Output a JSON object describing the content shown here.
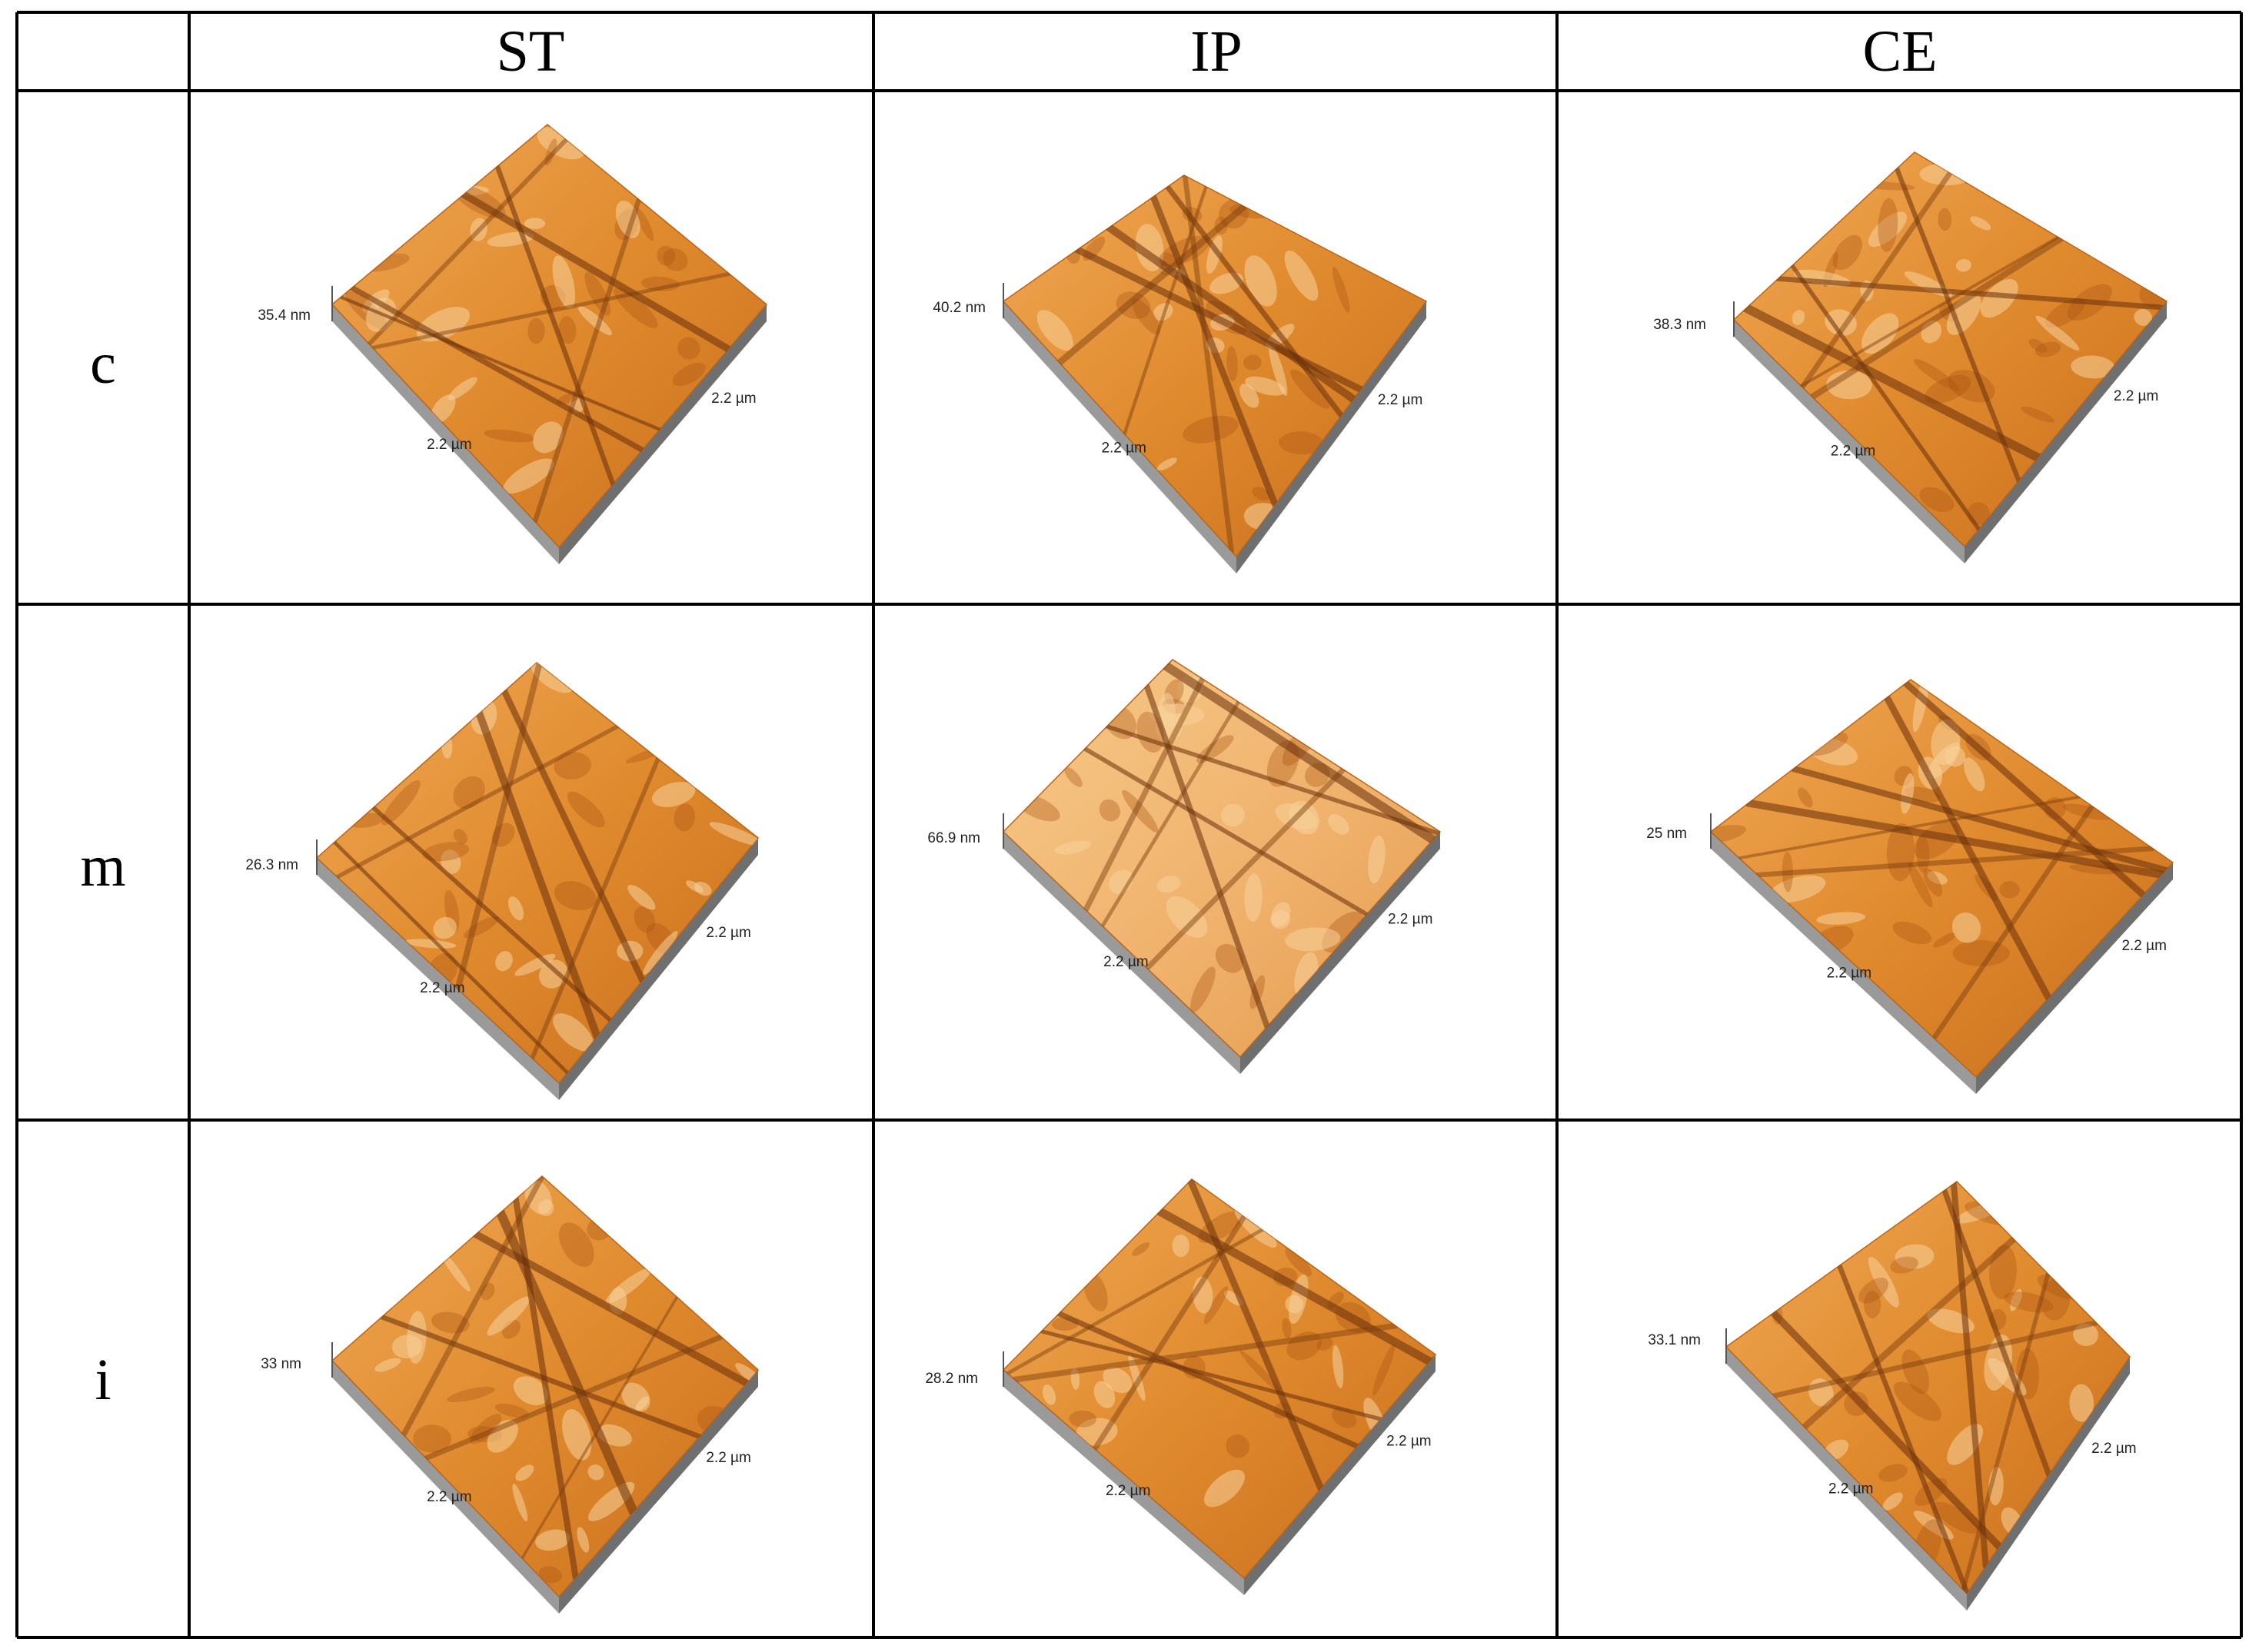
{
  "columns": [
    "ST",
    "IP",
    "CE"
  ],
  "rows": [
    {
      "label": "c",
      "cells": [
        {
          "height": "35.4 nm",
          "x_scale": "2.2 µm",
          "y_scale": "2.2 µm"
        },
        {
          "height": "40.2 nm",
          "x_scale": "2.2 µm",
          "y_scale": "2.2 µm"
        },
        {
          "height": "38.3 nm",
          "x_scale": "2.2 µm",
          "y_scale": "2.2 µm"
        }
      ]
    },
    {
      "label": "m",
      "cells": [
        {
          "height": "26.3 nm",
          "x_scale": "2.2 µm",
          "y_scale": "2.2 µm"
        },
        {
          "height": "66.9 nm",
          "x_scale": "2.2 µm",
          "y_scale": "2.2 µm"
        },
        {
          "height": "25 nm",
          "x_scale": "2.2 µm",
          "y_scale": "2.2 µm"
        }
      ]
    },
    {
      "label": "i",
      "cells": [
        {
          "height": "33 nm",
          "x_scale": "2.2 µm",
          "y_scale": "2.2 µm"
        },
        {
          "height": "28.2 nm",
          "x_scale": "2.2 µm",
          "y_scale": "2.2 µm"
        },
        {
          "height": "33.1 nm",
          "x_scale": "2.2 µm",
          "y_scale": "2.2 µm"
        }
      ]
    }
  ],
  "colors": {
    "surface": "#e08a2e",
    "surface_light": "#f3b86a",
    "groove": "#7a3c0c",
    "side_wall": "#8c8c8c",
    "grid_line": "#000000"
  }
}
